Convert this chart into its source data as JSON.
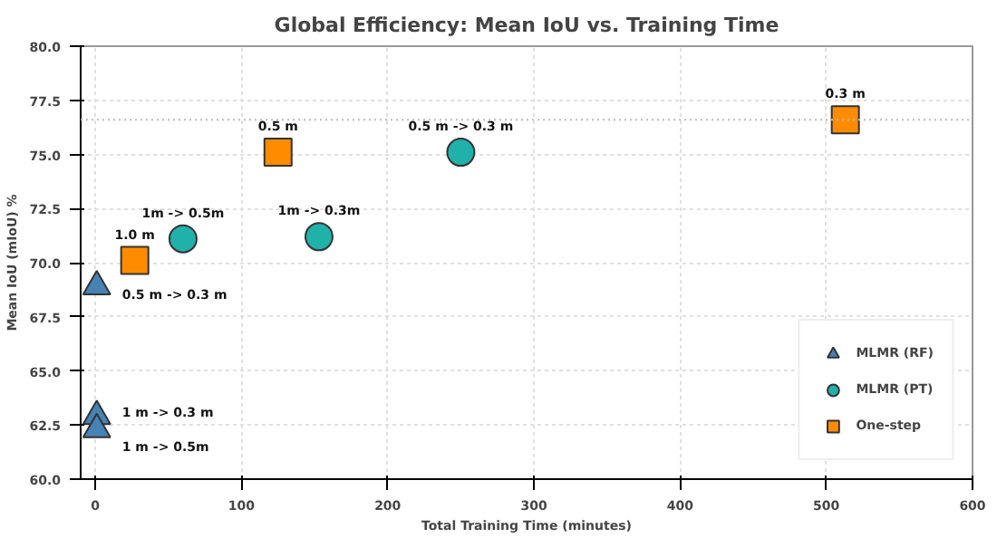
{
  "chart_data": {
    "type": "scatter",
    "title": "Global Efficiency: Mean IoU vs. Training Time",
    "xlabel": "Total Training Time (minutes)",
    "ylabel": "Mean IoU (mIoU) %",
    "xlim": [
      -10,
      600
    ],
    "ylim": [
      60,
      80
    ],
    "xticks": [
      0,
      100,
      200,
      300,
      400,
      500,
      600
    ],
    "yticks": [
      {
        "value": 60,
        "label": "60.0"
      },
      {
        "value": 62.5,
        "label": "62.5"
      },
      {
        "value": 65,
        "label": "65.0"
      },
      {
        "value": 67.5,
        "label": "67.5"
      },
      {
        "value": 70,
        "label": "70.0"
      },
      {
        "value": 72.5,
        "label": "72.5"
      },
      {
        "value": 75,
        "label": "75.0"
      },
      {
        "value": 77.5,
        "label": "77.5"
      },
      {
        "value": 80,
        "label": "80.0"
      }
    ],
    "grid": true,
    "legend": "bottom right",
    "series": [
      {
        "name": "MLMR (RF)",
        "color": "#4682b4",
        "marker": "triangle",
        "x": [
          1,
          1,
          1
        ],
        "values": [
          68.9,
          62.9,
          62.3
        ]
      },
      {
        "name": "MLMR (PT)",
        "color": "#20b2aa",
        "marker": "circle",
        "x": [
          60,
          153,
          250
        ],
        "values": [
          71.1,
          71.2,
          75.1
        ]
      },
      {
        "name": "One-step",
        "color": "#ff8c00",
        "marker": "square",
        "x": [
          27,
          125,
          513
        ],
        "values": [
          70.1,
          75.1,
          76.6
        ]
      }
    ],
    "ref_lines": [
      {
        "axis": "y",
        "value": 76.6,
        "color": "#bbbbbb",
        "line_style": "dotted"
      }
    ],
    "annotations": [
      {
        "text": "0.5 m -> 0.3 m",
        "x": 1,
        "y": 68.9
      },
      {
        "text": "1 m -> 0.3 m",
        "x": 1,
        "y": 62.9
      },
      {
        "text": "1 m -> 0.5m",
        "x": 1,
        "y": 62.3
      },
      {
        "text": "1m -> 0.5m",
        "x": 60,
        "y": 71.1
      },
      {
        "text": "1m -> 0.3m",
        "x": 153,
        "y": 71.2
      },
      {
        "text": "0.5 m -> 0.3 m",
        "x": 250,
        "y": 75.1
      },
      {
        "text": "1.0 m",
        "x": 27,
        "y": 70.1
      },
      {
        "text": "0.5 m",
        "x": 125,
        "y": 75.1
      },
      {
        "text": "0.3 m",
        "x": 513,
        "y": 76.6
      }
    ]
  }
}
